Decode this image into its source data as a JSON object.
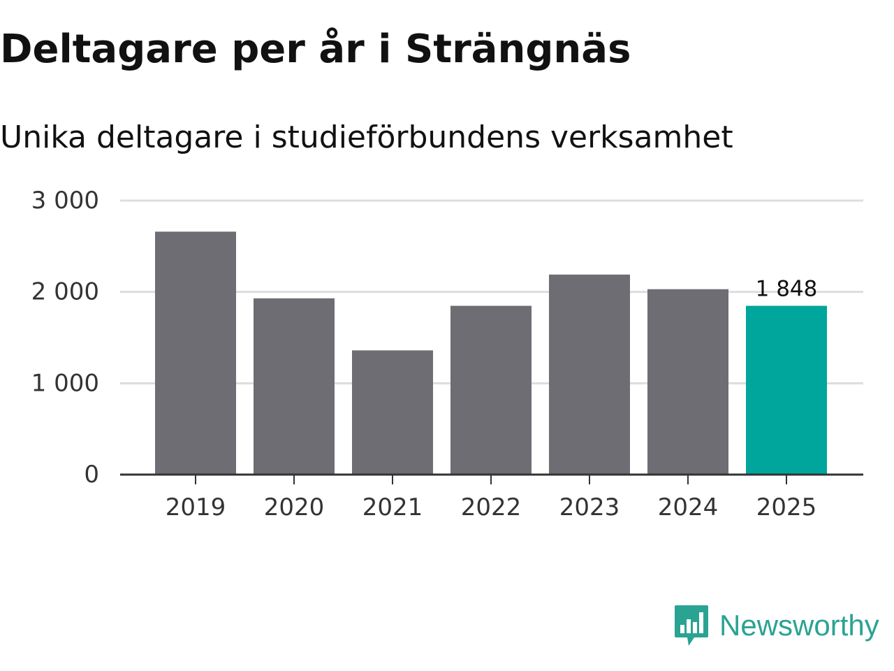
{
  "header": {
    "title": "Deltagare per år i Strängnäs",
    "subtitle": "Unika deltagare i studieförbundens verksamhet"
  },
  "chart_data": {
    "type": "bar",
    "title": "Deltagare per år i Strängnäs",
    "subtitle": "Unika deltagare i studieförbundens verksamhet",
    "xlabel": "",
    "ylabel": "",
    "categories": [
      "2019",
      "2020",
      "2021",
      "2022",
      "2023",
      "2024",
      "2025"
    ],
    "values": [
      2660,
      1930,
      1360,
      1848,
      2190,
      2030,
      1848
    ],
    "ylim": [
      0,
      3000
    ],
    "yticks": [
      0,
      1000,
      2000,
      3000
    ],
    "ytick_labels": [
      "0",
      "1 000",
      "2 000",
      "3 000"
    ],
    "highlight_index": 6,
    "data_labels": [
      {
        "index": 6,
        "text": "1 848"
      }
    ],
    "grid": true,
    "colors": {
      "default_bar": "#6e6d73",
      "highlight_bar": "#00a59b",
      "gridline": "#dddddd",
      "axis": "#333333"
    }
  },
  "branding": {
    "name": "Newsworthy",
    "logo_icon": "newsworthy-bar-chart-bubble-icon",
    "color": "#2aa393"
  }
}
